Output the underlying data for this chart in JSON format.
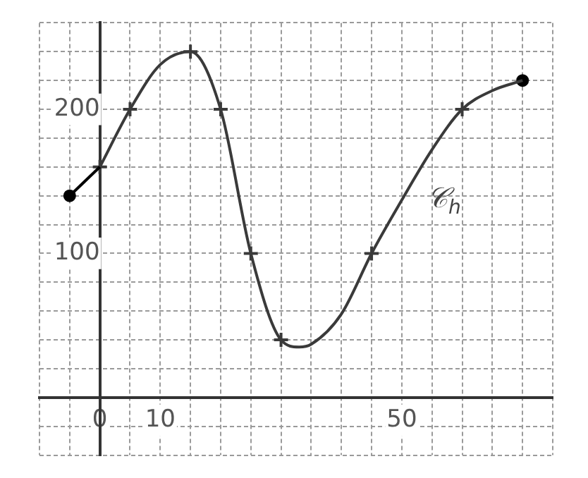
{
  "chart_data": {
    "type": "line",
    "xlim": [
      -10,
      75
    ],
    "ylim": [
      -40,
      260
    ],
    "xticks": [
      {
        "value": -10,
        "label": null
      },
      {
        "value": -5,
        "label": null
      },
      0,
      {
        "value": 5,
        "label": null
      },
      10,
      {
        "value": 15,
        "label": null
      },
      {
        "value": 20,
        "label": null
      },
      {
        "value": 25,
        "label": null
      },
      {
        "value": 30,
        "label": null
      },
      {
        "value": 35,
        "label": null
      },
      {
        "value": 40,
        "label": null
      },
      {
        "value": 45,
        "label": null
      },
      50,
      {
        "value": 55,
        "label": null
      },
      {
        "value": 60,
        "label": null
      },
      {
        "value": 65,
        "label": null
      },
      {
        "value": 70,
        "label": null
      },
      {
        "value": 75,
        "label": null
      }
    ],
    "yticks": [
      {
        "value": -40,
        "label": null
      },
      {
        "value": -20,
        "label": null
      },
      {
        "value": 0,
        "label": null
      },
      {
        "value": 20,
        "label": null
      },
      {
        "value": 40,
        "label": null
      },
      {
        "value": 60,
        "label": null
      },
      {
        "value": 80,
        "label": null
      },
      100,
      {
        "value": 120,
        "label": null
      },
      {
        "value": 140,
        "label": null
      },
      {
        "value": 160,
        "label": null
      },
      {
        "value": 180,
        "label": null
      },
      200,
      {
        "value": 220,
        "label": null
      },
      {
        "value": 240,
        "label": null
      },
      {
        "value": 260,
        "label": null
      }
    ],
    "grid": true,
    "line_style": "solid",
    "series": [
      {
        "color": "#000000",
        "marker": "none",
        "x": [
          -5,
          0
        ],
        "values": [
          140,
          160
        ]
      },
      {
        "name": "𝒞$_{h}$",
        "color": "#3a3a3a",
        "marker": "none",
        "x": [
          0,
          5,
          10,
          15,
          20,
          25,
          30,
          33,
          35,
          40,
          45,
          50,
          55,
          60,
          65,
          70
        ],
        "values": [
          160,
          200,
          231,
          240,
          200,
          100,
          40,
          35,
          37,
          58,
          100,
          137,
          172,
          200,
          213,
          220
        ]
      },
      {
        "type": "scatter",
        "color": "#3a3a3a",
        "marker": "cross",
        "x": [
          0,
          5,
          15,
          20,
          25,
          30,
          45,
          60
        ],
        "values": [
          160,
          200,
          240,
          200,
          100,
          40,
          100,
          200
        ]
      },
      {
        "type": "scatter",
        "color": "#000000",
        "marker": "circle",
        "x": [
          -5,
          70
        ],
        "values": [
          140,
          220
        ]
      }
    ]
  }
}
